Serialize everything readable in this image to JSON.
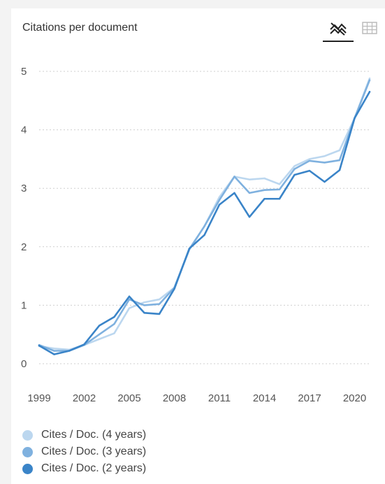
{
  "header": {
    "title": "Citations per document",
    "chart_view_icon": "line-chart-icon",
    "table_view_icon": "table-grid-icon"
  },
  "colors": {
    "four_years": "#bcd7ef",
    "three_years": "#7fb1df",
    "two_years": "#3a84c8",
    "grid": "#cfcfcf",
    "axis_text": "#555555"
  },
  "chart_data": {
    "type": "line",
    "title": "Citations per document",
    "xlabel": "",
    "ylabel": "",
    "x": [
      1999,
      2000,
      2001,
      2002,
      2003,
      2004,
      2005,
      2006,
      2007,
      2008,
      2009,
      2010,
      2011,
      2012,
      2013,
      2014,
      2015,
      2016,
      2017,
      2018,
      2019,
      2020,
      2021
    ],
    "x_ticks": [
      "1999",
      "2002",
      "2005",
      "2008",
      "2011",
      "2014",
      "2017",
      "2020"
    ],
    "y_ticks": [
      "0",
      "1",
      "2",
      "3",
      "4",
      "5"
    ],
    "ylim": [
      0,
      5
    ],
    "grid": true,
    "legend_position": "bottom",
    "series": [
      {
        "name": "Cites / Doc. (4 years)",
        "values": [
          0.3,
          0.26,
          0.24,
          0.32,
          0.42,
          0.52,
          0.95,
          1.05,
          1.1,
          1.3,
          1.95,
          2.35,
          2.85,
          3.2,
          3.15,
          3.17,
          3.07,
          3.38,
          3.5,
          3.55,
          3.65,
          4.2,
          4.88
        ]
      },
      {
        "name": "Cites / Doc. (3 years)",
        "values": [
          0.32,
          0.22,
          0.22,
          0.32,
          0.5,
          0.68,
          1.1,
          1.0,
          1.02,
          1.3,
          1.96,
          2.35,
          2.8,
          3.2,
          2.92,
          2.97,
          2.98,
          3.33,
          3.47,
          3.44,
          3.48,
          4.2,
          4.85
        ]
      },
      {
        "name": "Cites / Doc. (2 years)",
        "values": [
          0.31,
          0.16,
          0.22,
          0.33,
          0.65,
          0.8,
          1.15,
          0.87,
          0.85,
          1.28,
          1.97,
          2.2,
          2.72,
          2.92,
          2.51,
          2.82,
          2.82,
          3.23,
          3.3,
          3.11,
          3.31,
          4.2,
          4.65
        ]
      }
    ]
  }
}
